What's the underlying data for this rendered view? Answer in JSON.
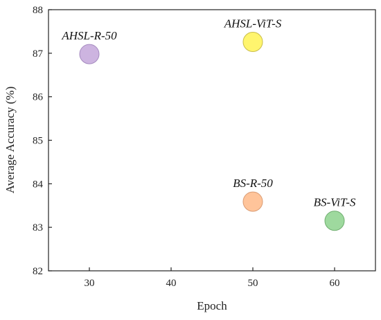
{
  "chart_data": {
    "type": "scatter",
    "title": "",
    "xlabel": "Epoch",
    "ylabel": "Average Accuracy (%)",
    "xlim": [
      25,
      65
    ],
    "ylim": [
      82,
      88
    ],
    "xticks": [
      30,
      40,
      50,
      60
    ],
    "yticks": [
      82,
      83,
      84,
      85,
      86,
      87,
      88
    ],
    "grid": false,
    "legend": "none",
    "points": [
      {
        "label": "AHSL-R-50",
        "x": 30,
        "y": 86.98,
        "fill": "#cdb4e0",
        "stroke": "#a489bf"
      },
      {
        "label": "AHSL-ViT-S",
        "x": 50,
        "y": 87.26,
        "fill": "#fff56e",
        "stroke": "#c9bd4a"
      },
      {
        "label": "BS-R-50",
        "x": 50,
        "y": 83.59,
        "fill": "#ffc49a",
        "stroke": "#d99a72"
      },
      {
        "label": "BS-ViT-S",
        "x": 60,
        "y": 83.15,
        "fill": "#9ed99e",
        "stroke": "#6fae6f"
      }
    ]
  }
}
